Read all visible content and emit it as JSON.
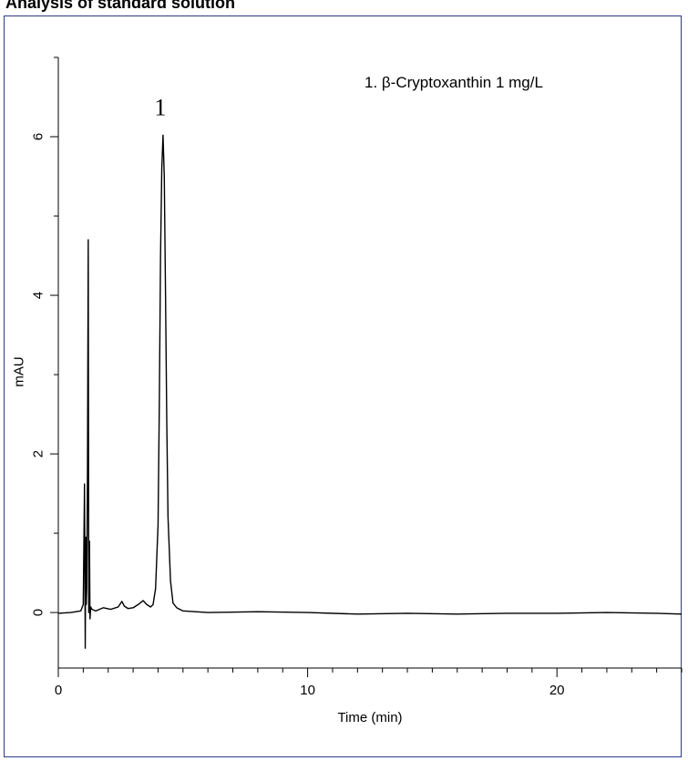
{
  "page": {
    "title": "Analysis of standard solution"
  },
  "chart_data": {
    "type": "line",
    "xlabel": "Time (min)",
    "ylabel": "mAU",
    "xlim": [
      0,
      25
    ],
    "ylim": [
      -0.7,
      7.0
    ],
    "x_ticks": [
      0,
      10,
      20
    ],
    "y_ticks": [
      0,
      2,
      4,
      6
    ],
    "x_minor_step": 1,
    "y_minor_step": 1,
    "grid": false,
    "legend_text": "1. β-Cryptoxanthin   1 mg/L",
    "legend_placement": "top-right",
    "peak_labels": [
      {
        "text": "1",
        "x": 4.2,
        "y": 6.02
      }
    ],
    "series": [
      {
        "color": "#000000",
        "x": [
          0.0,
          0.5,
          0.9,
          1.0,
          1.05,
          1.08,
          1.1,
          1.12,
          1.14,
          1.17,
          1.2,
          1.22,
          1.25,
          1.27,
          1.3,
          1.35,
          1.5,
          1.8,
          2.1,
          2.4,
          2.55,
          2.65,
          2.8,
          3.0,
          3.2,
          3.4,
          3.55,
          3.7,
          3.8,
          3.9,
          4.0,
          4.05,
          4.1,
          4.15,
          4.2,
          4.25,
          4.3,
          4.35,
          4.4,
          4.5,
          4.6,
          4.75,
          5.0,
          6.0,
          8.0,
          10.0,
          12.0,
          14.0,
          16.0,
          18.0,
          20.0,
          22.0,
          24.0,
          25.0
        ],
        "y": [
          -0.01,
          0.0,
          0.02,
          0.1,
          1.62,
          -0.45,
          0.95,
          0.1,
          0.3,
          1.8,
          4.7,
          0.0,
          0.9,
          -0.08,
          0.07,
          0.04,
          0.02,
          0.06,
          0.04,
          0.07,
          0.14,
          0.08,
          0.05,
          0.06,
          0.1,
          0.15,
          0.1,
          0.07,
          0.1,
          0.3,
          1.1,
          2.6,
          4.5,
          5.6,
          6.02,
          5.5,
          4.0,
          2.4,
          1.2,
          0.4,
          0.12,
          0.06,
          0.02,
          0.0,
          0.01,
          0.0,
          -0.02,
          -0.01,
          -0.02,
          -0.01,
          -0.01,
          0.0,
          -0.01,
          -0.02
        ]
      }
    ]
  }
}
